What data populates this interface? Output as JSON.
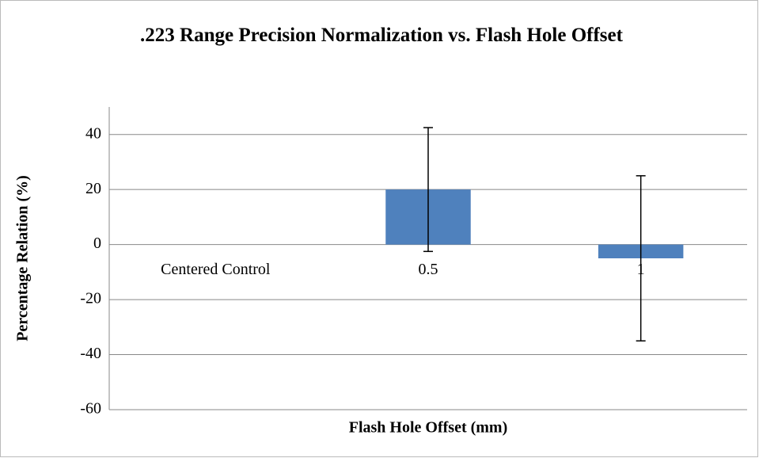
{
  "chart_data": {
    "type": "bar",
    "title": ".223 Range Precision Normalization vs. Flash Hole Offset",
    "x_label": "Flash Hole Offset (mm)",
    "y_label": "Percentage Relation (%)",
    "categories": [
      "Centered Control",
      "0.5",
      "1"
    ],
    "values": [
      0,
      20,
      -5
    ],
    "errors": [
      null,
      22.5,
      30
    ],
    "color": "#4f81bd",
    "ylim": [
      -60,
      50
    ],
    "yticks": [
      -60,
      -40,
      -20,
      0,
      20,
      40
    ],
    "grid": true
  }
}
